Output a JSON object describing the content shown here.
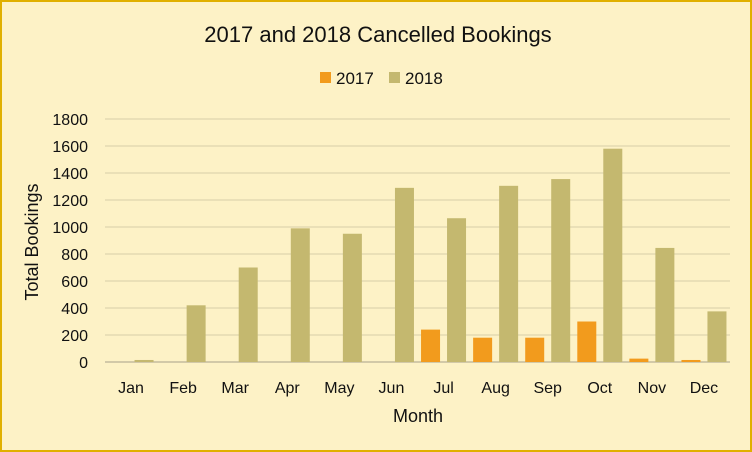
{
  "chart_data": {
    "type": "bar",
    "title": "2017 and 2018 Cancelled Bookings",
    "xlabel": "Month",
    "ylabel": "Total Bookings",
    "ylim": [
      0,
      1800
    ],
    "yticks": [
      0,
      200,
      400,
      600,
      800,
      1000,
      1200,
      1400,
      1600,
      1800
    ],
    "grid": true,
    "legend_position": "top",
    "categories": [
      "Jan",
      "Feb",
      "Mar",
      "Apr",
      "May",
      "Jun",
      "Jul",
      "Aug",
      "Sep",
      "Oct",
      "Nov",
      "Dec"
    ],
    "series": [
      {
        "name": "2017",
        "color": "#f29b1d",
        "values": [
          null,
          null,
          null,
          null,
          null,
          null,
          240,
          180,
          180,
          300,
          25,
          15
        ]
      },
      {
        "name": "2018",
        "color": "#c4b86f",
        "values": [
          15,
          420,
          700,
          990,
          950,
          1290,
          1065,
          1305,
          1355,
          1580,
          845,
          375
        ]
      }
    ]
  }
}
